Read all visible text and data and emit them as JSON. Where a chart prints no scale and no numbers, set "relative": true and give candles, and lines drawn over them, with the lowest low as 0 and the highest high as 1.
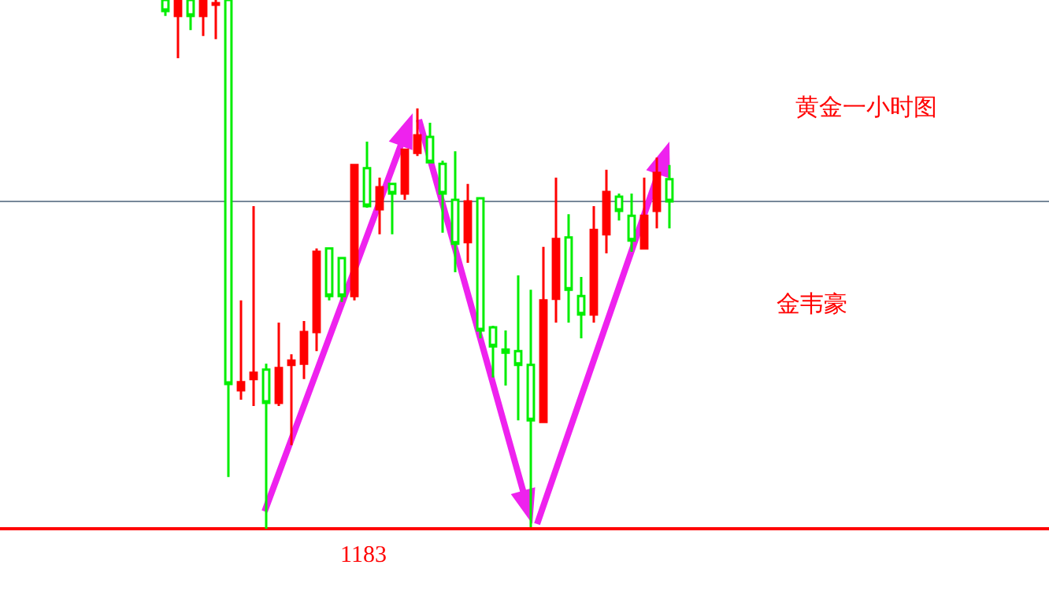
{
  "chart_data": {
    "type": "candlestick",
    "relative": true,
    "tick_labels": false,
    "grid": false,
    "legend": false,
    "categories": [
      null,
      null,
      null,
      null,
      null,
      null,
      null,
      null,
      null,
      null,
      null,
      null,
      null,
      null,
      null,
      null,
      null,
      null,
      null,
      null,
      null,
      null,
      null,
      null,
      null,
      null,
      null,
      null,
      null,
      null,
      null,
      null,
      null,
      null,
      null,
      null,
      null,
      null,
      null,
      null,
      null
    ],
    "ohlc": [
      [
        1,
        1,
        0.97,
        0.979
      ],
      [
        0.97,
        1,
        0.89,
        1
      ],
      [
        1,
        1,
        0.943,
        0.97
      ],
      [
        0.97,
        1,
        0.932,
        1
      ],
      [
        0.991,
        1,
        0.926,
        0.994
      ],
      [
        1,
        1,
        0.098,
        0.274
      ],
      [
        0.262,
        0.432,
        0.244,
        0.277
      ],
      [
        0.283,
        0.61,
        0.232,
        0.295
      ],
      [
        0.301,
        0.312,
        0,
        0.238
      ],
      [
        0.238,
        0.39,
        0.232,
        0.304
      ],
      [
        0.31,
        0.33,
        0.158,
        0.318
      ],
      [
        0.312,
        0.393,
        0.283,
        0.372
      ],
      [
        0.372,
        0.53,
        0.336,
        0.524
      ],
      [
        0.53,
        0.53,
        0.432,
        0.44
      ],
      [
        0.512,
        0.512,
        0.429,
        0.44
      ],
      [
        0.44,
        0.688,
        0.432,
        0.688
      ],
      [
        0.682,
        0.732,
        0.607,
        0.61
      ],
      [
        0.604,
        0.664,
        0.557,
        0.646
      ],
      [
        0.652,
        0.652,
        0.557,
        0.634
      ],
      [
        0.634,
        0.717,
        0.622,
        0.717
      ],
      [
        0.711,
        0.795,
        0.705,
        0.744
      ],
      [
        0.741,
        0.768,
        0.693,
        0.693
      ],
      [
        0.69,
        0.696,
        0.56,
        0.634
      ],
      [
        0.622,
        0.714,
        0.485,
        0.539
      ],
      [
        0.542,
        0.652,
        0.503,
        0.619
      ],
      [
        0.625,
        0.625,
        0.36,
        0.375
      ],
      [
        0.381,
        0.384,
        0.286,
        0.345
      ],
      [
        0.339,
        0.375,
        0.271,
        0.333
      ],
      [
        0.336,
        0.479,
        0.205,
        0.31
      ],
      [
        0.31,
        0.452,
        0.003,
        0.205
      ],
      [
        0.202,
        0.533,
        0.202,
        0.432
      ],
      [
        0.435,
        0.664,
        0.39,
        0.548
      ],
      [
        0.551,
        0.595,
        0.39,
        0.452
      ],
      [
        0.44,
        0.476,
        0.36,
        0.405
      ],
      [
        0.405,
        0.61,
        0.39,
        0.565
      ],
      [
        0.557,
        0.679,
        0.521,
        0.637
      ],
      [
        0.628,
        0.634,
        0.583,
        0.601
      ],
      [
        0.592,
        0.634,
        0.524,
        0.545
      ],
      [
        0.53,
        0.664,
        0.53,
        0.592
      ],
      [
        0.601,
        0.702,
        0.568,
        0.673
      ],
      [
        0.661,
        0.688,
        0.568,
        0.619
      ]
    ],
    "colors": [
      "#00ee00",
      "#ff0000",
      "#00ee00",
      "#ff0000",
      "#ff0000",
      "#00ee00",
      "#ff0000",
      "#ff0000",
      "#00ee00",
      "#ff0000",
      "#ff0000",
      "#ff0000",
      "#ff0000",
      "#00ee00",
      "#00ee00",
      "#ff0000",
      "#00ee00",
      "#ff0000",
      "#00ee00",
      "#ff0000",
      "#ff0000",
      "#00ee00",
      "#00ee00",
      "#00ee00",
      "#ff0000",
      "#00ee00",
      "#00ee00",
      "#00ee00",
      "#00ee00",
      "#00ee00",
      "#ff0000",
      "#ff0000",
      "#00ee00",
      "#00ee00",
      "#ff0000",
      "#ff0000",
      "#00ee00",
      "#00ee00",
      "#ff0000",
      "#ff0000",
      "#00ee00"
    ],
    "ref_lines": [
      {
        "axis": "y",
        "value": 0,
        "color": "#ff0000"
      },
      {
        "axis": "y",
        "value": 0.619,
        "color": "#778899"
      }
    ],
    "annotations": [
      "1183",
      "黄金一小时图",
      "金韦豪"
    ]
  }
}
